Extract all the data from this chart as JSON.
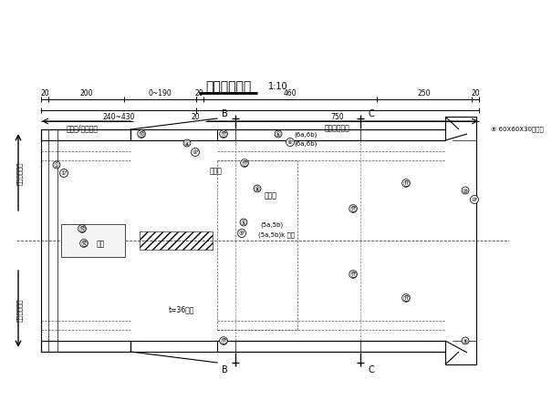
{
  "title": "活络头构造图",
  "scale": "1:10",
  "bg_color": "#ffffff",
  "annotations": {
    "dir_left": "接冠梁/圆锁方向",
    "dir_right": "接钢支撑方向",
    "label_jikeng_top": "基坑水平方向",
    "label_jikeng_bot": "基坑水平方向",
    "text_huojietou": "活楔头",
    "text_banjiban": "竖肋板",
    "text_liban": "肋板",
    "text_t36": "t=36楔块",
    "right_note": "60X60X30加劲肋"
  },
  "dims": {
    "d1": "20",
    "d2": "200",
    "d3": "0~190",
    "d4": "20",
    "d5": "460",
    "d6": "250",
    "d7": "20",
    "d8": "240~430",
    "d9": "20",
    "d10": "750"
  }
}
